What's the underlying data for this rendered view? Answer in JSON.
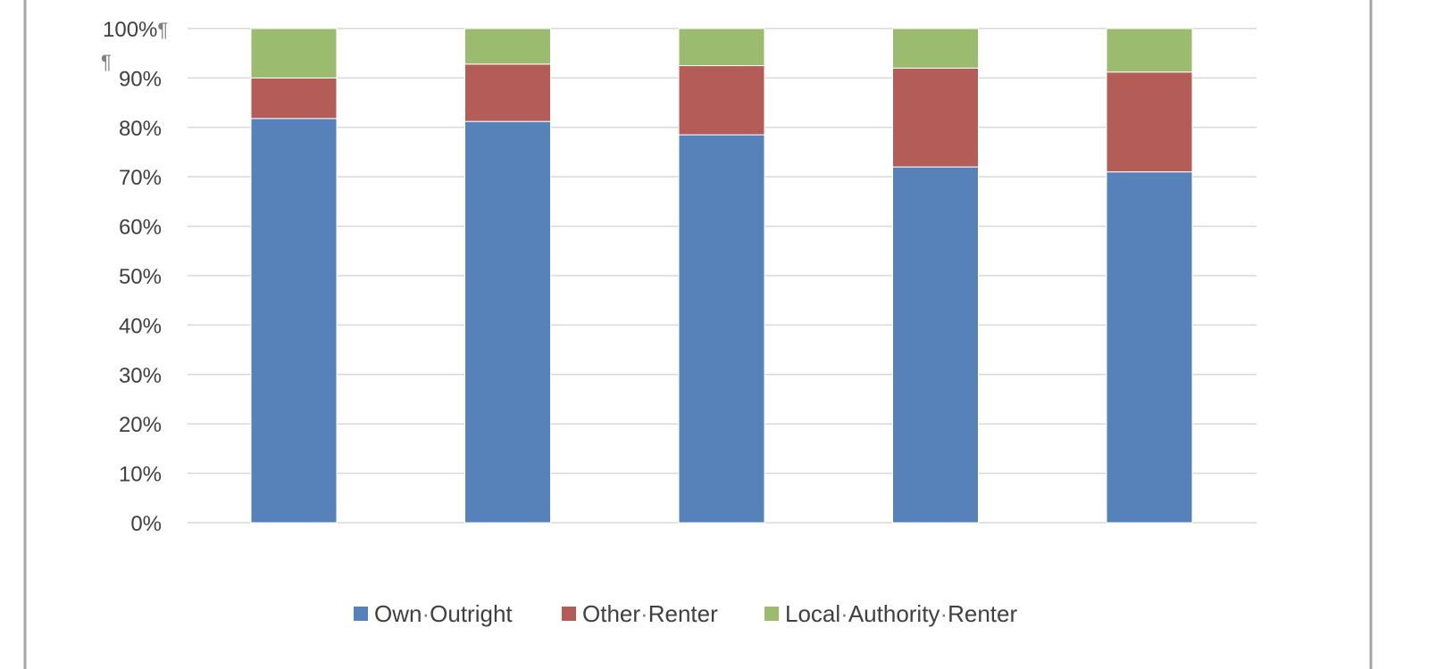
{
  "chart_data": {
    "type": "bar",
    "stacked": true,
    "percent_stacked": true,
    "categories": [
      "",
      "",
      "",
      "",
      ""
    ],
    "series": [
      {
        "name": "Own·Outright",
        "color": "#5681B9",
        "values": [
          81.8,
          81.2,
          78.5,
          72.0,
          71.0
        ]
      },
      {
        "name": "Other·Renter",
        "color": "#B35C58",
        "values": [
          8.2,
          11.6,
          14.0,
          20.0,
          20.2
        ]
      },
      {
        "name": "Local·Authority·Renter",
        "color": "#9BBB6F",
        "values": [
          10.0,
          7.2,
          7.5,
          8.0,
          8.8
        ]
      }
    ],
    "ylim": [
      0,
      100
    ],
    "y_ticks": [
      "0%",
      "10%",
      "20%",
      "30%",
      "40%",
      "50%",
      "60%",
      "70%",
      "80%",
      "90%",
      "100%¶"
    ],
    "grid": true,
    "legend_position": "bottom",
    "annotations": [
      "¶"
    ]
  },
  "colors": {
    "grid": "#D9D9D9",
    "frame": "#A6A6A6",
    "text": "#404040",
    "pilcrow": "#7F7F7F"
  }
}
